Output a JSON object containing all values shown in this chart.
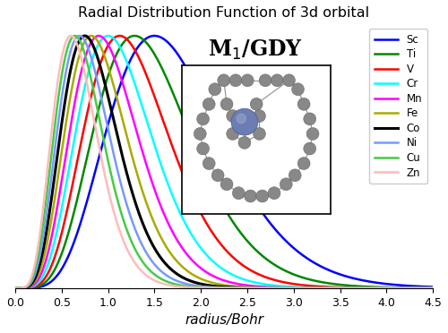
{
  "title": "Radial Distribution Function of 3d orbital",
  "xlabel": "radius/Bohr",
  "xlim": [
    0.0,
    4.5
  ],
  "ylim": [
    0.0,
    1.05
  ],
  "elements": [
    "Sc",
    "Ti",
    "V",
    "Cr",
    "Mn",
    "Fe",
    "Co",
    "Ni",
    "Cu",
    "Zn"
  ],
  "colors": [
    "blue",
    "#008800",
    "red",
    "cyan",
    "magenta",
    "#aaaa00",
    "black",
    "#7799ff",
    "#44cc44",
    "#ffbbbb"
  ],
  "linewidths": [
    1.8,
    1.8,
    1.8,
    1.8,
    1.8,
    1.8,
    2.2,
    1.8,
    1.8,
    1.8
  ],
  "Z_eff": [
    6.0,
    7.0,
    8.0,
    9.0,
    10.0,
    11.0,
    12.0,
    13.0,
    14.0,
    15.0
  ],
  "background_color": "white",
  "metal_atom_color": "#6b7db3",
  "carbon_atom_color": "#888888",
  "bond_color": "#999999"
}
